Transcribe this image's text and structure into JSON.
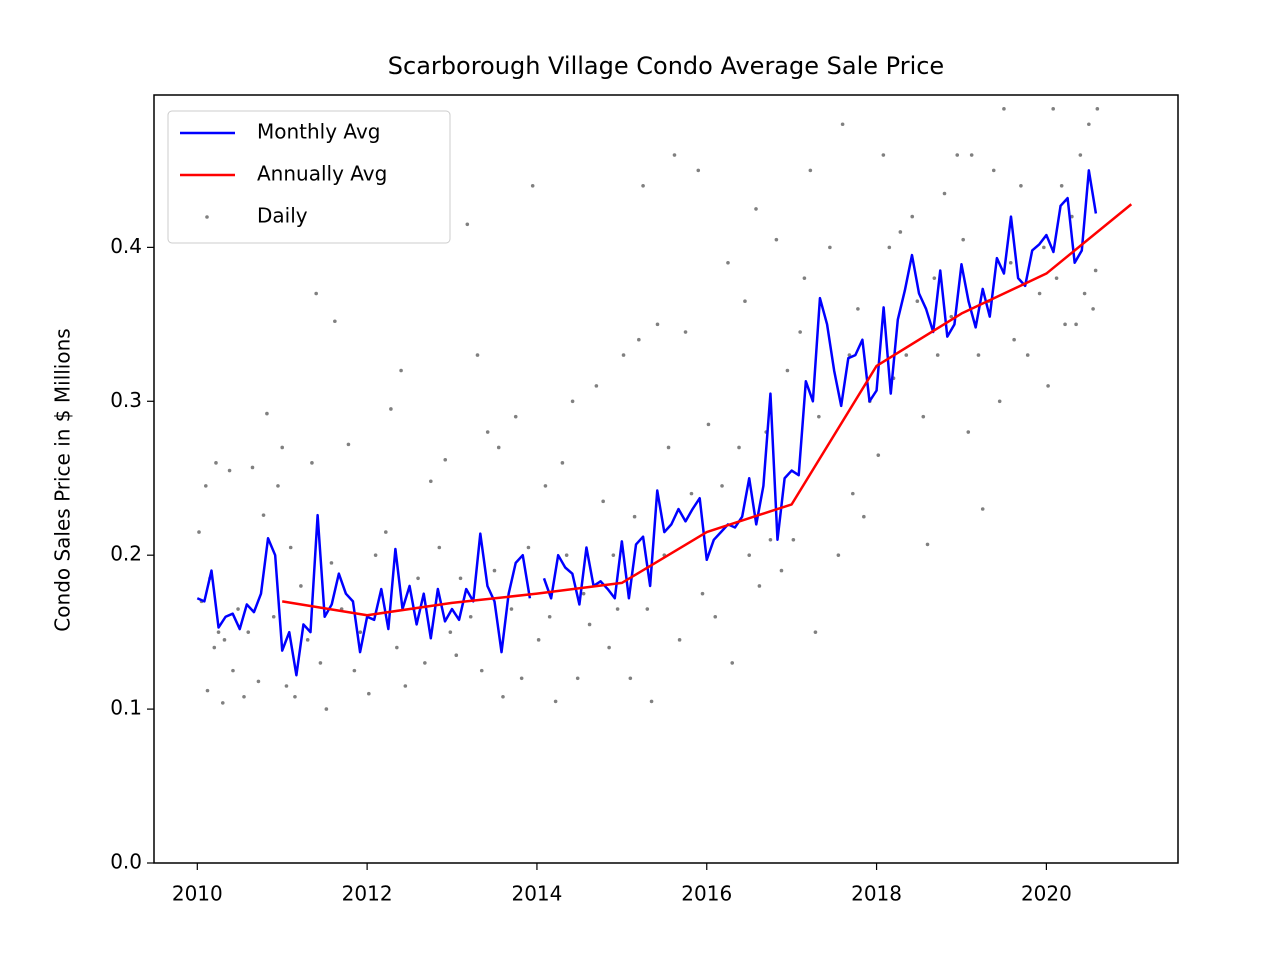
{
  "chart_data": {
    "type": "line",
    "title": "Scarborough Village Condo Average Sale Price",
    "y_label": "Condo Sales Price in $ Millions",
    "xlim": [
      2009.49,
      2021.55
    ],
    "ylim": [
      0,
      0.499
    ],
    "xticks": [
      2010,
      2012,
      2014,
      2016,
      2018,
      2020
    ],
    "yticks": [
      {
        "value": 0,
        "label": "0.0"
      },
      0.1,
      0.2,
      0.3,
      0.4
    ],
    "legend": "upper left",
    "series": [
      {
        "name": "Monthly Avg",
        "type": "line",
        "color": "#0000ff",
        "x": [
          2010,
          2010.083,
          2010.167,
          2010.25,
          2010.333,
          2010.417,
          2010.5,
          2010.583,
          2010.667,
          2010.75,
          2010.833,
          2010.917,
          2011,
          2011.083,
          2011.167,
          2011.25,
          2011.333,
          2011.417,
          2011.5,
          2011.583,
          2011.667,
          2011.75,
          2011.833,
          2011.917,
          2012,
          2012.083,
          2012.167,
          2012.25,
          2012.333,
          2012.417,
          2012.5,
          2012.583,
          2012.667,
          2012.75,
          2012.833,
          2012.917,
          2013,
          2013.083,
          2013.167,
          2013.25,
          2013.333,
          2013.417,
          2013.5,
          2013.583,
          2013.667,
          2013.75,
          2013.833,
          2013.917,
          2014,
          2014.083,
          2014.167,
          2014.25,
          2014.333,
          2014.417,
          2014.5,
          2014.583,
          2014.667,
          2014.75,
          2014.833,
          2014.917,
          2015,
          2015.083,
          2015.167,
          2015.25,
          2015.333,
          2015.417,
          2015.5,
          2015.583,
          2015.667,
          2015.75,
          2015.833,
          2015.917,
          2016,
          2016.083,
          2016.167,
          2016.25,
          2016.333,
          2016.417,
          2016.5,
          2016.583,
          2016.667,
          2016.75,
          2016.833,
          2016.917,
          2017,
          2017.083,
          2017.167,
          2017.25,
          2017.333,
          2017.417,
          2017.5,
          2017.583,
          2017.667,
          2017.75,
          2017.833,
          2017.917,
          2018,
          2018.083,
          2018.167,
          2018.25,
          2018.333,
          2018.417,
          2018.5,
          2018.583,
          2018.667,
          2018.75,
          2018.833,
          2018.917,
          2019,
          2019.083,
          2019.167,
          2019.25,
          2019.333,
          2019.417,
          2019.5,
          2019.583,
          2019.667,
          2019.75,
          2019.833,
          2019.917,
          2020,
          2020.083,
          2020.167,
          2020.25,
          2020.333,
          2020.417,
          2020.5,
          2020.583
        ],
        "values": [
          0.172,
          0.17,
          0.19,
          0.153,
          0.16,
          0.162,
          0.152,
          0.168,
          0.163,
          0.175,
          0.211,
          0.2,
          0.138,
          0.15,
          0.122,
          0.155,
          0.15,
          0.226,
          0.16,
          0.168,
          0.188,
          0.175,
          0.17,
          0.137,
          0.16,
          0.158,
          0.178,
          0.152,
          0.204,
          0.165,
          0.18,
          0.155,
          0.175,
          0.146,
          0.178,
          0.157,
          0.165,
          0.158,
          0.178,
          0.17,
          0.214,
          0.18,
          0.17,
          0.137,
          0.175,
          0.195,
          0.2,
          0.172,
          null,
          0.185,
          0.172,
          0.2,
          0.192,
          0.188,
          0.168,
          0.205,
          0.18,
          0.183,
          0.178,
          0.172,
          0.209,
          0.172,
          0.207,
          0.212,
          0.18,
          0.242,
          0.215,
          0.22,
          0.23,
          0.222,
          0.23,
          0.237,
          0.197,
          0.21,
          0.215,
          0.22,
          0.218,
          0.225,
          0.25,
          0.22,
          0.245,
          0.305,
          0.21,
          0.25,
          0.255,
          0.252,
          0.313,
          0.3,
          0.367,
          0.35,
          0.32,
          0.297,
          0.328,
          0.33,
          0.34,
          0.3,
          0.307,
          0.361,
          0.305,
          0.353,
          0.372,
          0.395,
          0.37,
          0.36,
          0.345,
          0.385,
          0.342,
          0.35,
          0.389,
          0.365,
          0.348,
          0.373,
          0.355,
          0.393,
          0.383,
          0.42,
          0.38,
          0.375,
          0.398,
          0.402,
          0.408,
          0.397,
          0.427,
          0.432,
          0.39,
          0.398,
          0.45,
          0.422
        ]
      },
      {
        "name": "Annually Avg",
        "type": "line",
        "color": "#ff0000",
        "x": [
          2011,
          2012,
          2013,
          2014,
          2015,
          2016,
          2017,
          2018,
          2019,
          2020,
          2021
        ],
        "values": [
          0.17,
          0.161,
          0.169,
          0.175,
          0.182,
          0.215,
          0.233,
          0.323,
          0.357,
          0.383,
          0.428
        ]
      },
      {
        "name": "Daily",
        "type": "scatter",
        "color": "#808080",
        "x": [
          2010.02,
          2010.05,
          2010.1,
          2010.12,
          2010.15,
          2010.2,
          2010.22,
          2010.25,
          2010.3,
          2010.32,
          2010.38,
          2010.42,
          2010.48,
          2010.55,
          2010.6,
          2010.65,
          2010.72,
          2010.78,
          2010.82,
          2010.9,
          2010.95,
          2011,
          2011.05,
          2011.1,
          2011.15,
          2011.22,
          2011.3,
          2011.35,
          2011.4,
          2011.45,
          2011.52,
          2011.58,
          2011.62,
          2011.7,
          2011.78,
          2011.85,
          2011.92,
          2012.02,
          2012.1,
          2012.22,
          2012.28,
          2012.35,
          2012.4,
          2012.45,
          2012.55,
          2012.6,
          2012.68,
          2012.75,
          2012.85,
          2012.92,
          2012.98,
          2013.05,
          2013.1,
          2013.18,
          2013.22,
          2013.3,
          2013.35,
          2013.42,
          2013.5,
          2013.55,
          2013.6,
          2013.7,
          2013.75,
          2013.82,
          2013.9,
          2013.95,
          2014.02,
          2014.1,
          2014.15,
          2014.22,
          2014.3,
          2014.35,
          2014.42,
          2014.48,
          2014.55,
          2014.62,
          2014.7,
          2014.78,
          2014.85,
          2014.9,
          2014.95,
          2015.02,
          2015.1,
          2015.15,
          2015.2,
          2015.25,
          2015.3,
          2015.35,
          2015.42,
          2015.5,
          2015.55,
          2015.62,
          2015.68,
          2015.75,
          2015.82,
          2015.9,
          2015.95,
          2016.02,
          2016.1,
          2016.18,
          2016.25,
          2016.3,
          2016.38,
          2016.45,
          2016.5,
          2016.58,
          2016.62,
          2016.7,
          2016.75,
          2016.82,
          2016.88,
          2016.95,
          2017.02,
          2017.1,
          2017.15,
          2017.22,
          2017.28,
          2017.32,
          2017.4,
          2017.45,
          2017.55,
          2017.6,
          2017.68,
          2017.72,
          2017.78,
          2017.85,
          2017.92,
          2018.02,
          2018.08,
          2018.15,
          2018.2,
          2018.28,
          2018.35,
          2018.42,
          2018.48,
          2018.55,
          2018.6,
          2018.68,
          2018.72,
          2018.8,
          2018.88,
          2018.95,
          2019.02,
          2019.08,
          2019.12,
          2019.2,
          2019.25,
          2019.32,
          2019.38,
          2019.45,
          2019.5,
          2019.58,
          2019.62,
          2019.7,
          2019.78,
          2019.85,
          2019.92,
          2019.97,
          2020.02,
          2020.08,
          2020.12,
          2020.18,
          2020.22,
          2020.3,
          2020.35,
          2020.4,
          2020.45,
          2020.5,
          2020.55,
          2020.58,
          2020.6
        ],
        "values": [
          0.215,
          0.17,
          0.245,
          0.112,
          0.185,
          0.14,
          0.26,
          0.15,
          0.104,
          0.145,
          0.255,
          0.125,
          0.165,
          0.108,
          0.15,
          0.257,
          0.118,
          0.226,
          0.292,
          0.16,
          0.245,
          0.27,
          0.115,
          0.205,
          0.108,
          0.18,
          0.145,
          0.26,
          0.37,
          0.13,
          0.1,
          0.195,
          0.352,
          0.165,
          0.272,
          0.125,
          0.15,
          0.11,
          0.2,
          0.215,
          0.295,
          0.14,
          0.32,
          0.115,
          0.165,
          0.185,
          0.13,
          0.248,
          0.205,
          0.262,
          0.15,
          0.135,
          0.185,
          0.415,
          0.16,
          0.33,
          0.125,
          0.28,
          0.19,
          0.27,
          0.108,
          0.165,
          0.29,
          0.12,
          0.205,
          0.44,
          0.145,
          0.245,
          0.16,
          0.105,
          0.26,
          0.2,
          0.3,
          0.12,
          0.175,
          0.155,
          0.31,
          0.235,
          0.14,
          0.2,
          0.165,
          0.33,
          0.12,
          0.225,
          0.34,
          0.44,
          0.165,
          0.105,
          0.35,
          0.2,
          0.27,
          0.46,
          0.145,
          0.345,
          0.24,
          0.45,
          0.175,
          0.285,
          0.16,
          0.245,
          0.39,
          0.13,
          0.27,
          0.365,
          0.2,
          0.425,
          0.18,
          0.28,
          0.21,
          0.405,
          0.19,
          0.32,
          0.21,
          0.345,
          0.38,
          0.45,
          0.15,
          0.29,
          0.5,
          0.4,
          0.2,
          0.48,
          0.33,
          0.24,
          0.36,
          0.225,
          0.3,
          0.265,
          0.46,
          0.4,
          0.315,
          0.41,
          0.33,
          0.42,
          0.365,
          0.29,
          0.207,
          0.38,
          0.33,
          0.435,
          0.355,
          0.46,
          0.405,
          0.28,
          0.46,
          0.33,
          0.23,
          0.365,
          0.45,
          0.3,
          0.49,
          0.39,
          0.34,
          0.44,
          0.33,
          0.5,
          0.37,
          0.4,
          0.31,
          0.49,
          0.38,
          0.44,
          0.35,
          0.42,
          0.35,
          0.46,
          0.37,
          0.48,
          0.36,
          0.385,
          0.49
        ]
      }
    ]
  }
}
